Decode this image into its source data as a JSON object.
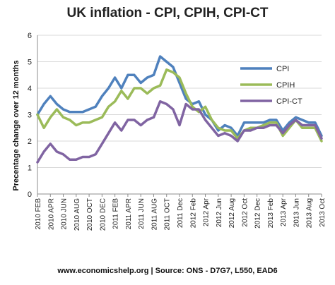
{
  "chart_data": {
    "type": "line",
    "title": "UK inflation - CPI, CPIH, CPI-CT",
    "xlabel": "",
    "ylabel": "Precentage change over 12 months",
    "ylim": [
      0,
      6
    ],
    "yticks": [
      0,
      1,
      2,
      3,
      4,
      5,
      6
    ],
    "grid": true,
    "legend_position": "right",
    "x_tick_labels": [
      "2010 FEB",
      "2010 APR",
      "2010 JUN",
      "2010 AUG",
      "2010 OCT",
      "2010 DEC",
      "2011 FEB",
      "2011 APR",
      "2011 JUN",
      "2011 AUG",
      "2011 OCT",
      "2011 Dec",
      "2012 Feb",
      "2012 Apr",
      "2012 Jun",
      "2012 Aug",
      "2012 Oct",
      "2012 Dec",
      "2013 Feb",
      "2013 Apr",
      "2013 Jun",
      "2013 Aug",
      "2013 Oct"
    ],
    "series": [
      {
        "name": "CPI",
        "color": "#4f81bd",
        "values": [
          3.0,
          3.4,
          3.7,
          3.4,
          3.2,
          3.1,
          3.1,
          3.1,
          3.2,
          3.3,
          3.7,
          4.0,
          4.4,
          4.0,
          4.5,
          4.5,
          4.2,
          4.4,
          4.5,
          5.2,
          5.0,
          4.8,
          4.2,
          3.6,
          3.4,
          3.5,
          3.0,
          2.8,
          2.4,
          2.6,
          2.5,
          2.2,
          2.7,
          2.7,
          2.7,
          2.7,
          2.8,
          2.8,
          2.4,
          2.7,
          2.9,
          2.8,
          2.7,
          2.7,
          2.2
        ]
      },
      {
        "name": "CPIH",
        "color": "#9bbb59",
        "values": [
          3.0,
          2.5,
          2.9,
          3.2,
          2.9,
          2.8,
          2.6,
          2.7,
          2.7,
          2.8,
          2.9,
          3.3,
          3.5,
          3.9,
          3.6,
          4.0,
          4.0,
          3.8,
          4.0,
          4.1,
          4.7,
          4.6,
          4.4,
          3.8,
          3.3,
          3.1,
          3.3,
          2.8,
          2.5,
          2.4,
          2.4,
          2.1,
          2.4,
          2.5,
          2.5,
          2.6,
          2.7,
          2.7,
          2.2,
          2.5,
          2.8,
          2.5,
          2.5,
          2.5,
          2.0
        ]
      },
      {
        "name": "CPI-CT",
        "color": "#8064a2",
        "values": [
          1.2,
          1.6,
          1.9,
          1.6,
          1.5,
          1.3,
          1.3,
          1.4,
          1.4,
          1.5,
          1.9,
          2.3,
          2.7,
          2.4,
          2.8,
          2.8,
          2.6,
          2.8,
          2.9,
          3.5,
          3.4,
          3.2,
          2.6,
          3.4,
          3.2,
          3.2,
          2.8,
          2.5,
          2.2,
          2.3,
          2.2,
          2.0,
          2.4,
          2.4,
          2.5,
          2.5,
          2.6,
          2.6,
          2.3,
          2.6,
          2.8,
          2.6,
          2.6,
          2.6,
          2.1
        ]
      }
    ]
  },
  "source_note": "www.economicshelp.org | Source: ONS - D7G7, L550, EAD6"
}
